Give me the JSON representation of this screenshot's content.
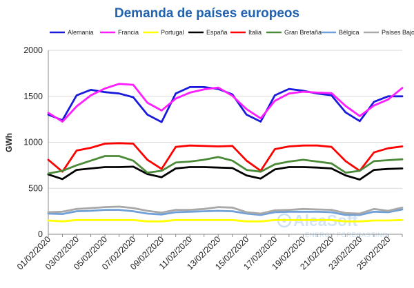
{
  "chart_data": {
    "type": "line",
    "title": "Demanda de países europeos",
    "ylabel": "GWh",
    "xlabel": "",
    "ylim": [
      0,
      2000
    ],
    "yticks": [
      0,
      500,
      1000,
      1500,
      2000
    ],
    "grid": true,
    "legend_position": "top",
    "x": [
      "01/02/2020",
      "02/02/2020",
      "03/02/2020",
      "04/02/2020",
      "05/02/2020",
      "06/02/2020",
      "07/02/2020",
      "08/02/2020",
      "09/02/2020",
      "10/02/2020",
      "11/02/2020",
      "12/02/2020",
      "13/02/2020",
      "14/02/2020",
      "15/02/2020",
      "16/02/2020",
      "17/02/2020",
      "18/02/2020",
      "19/02/2020",
      "20/02/2020",
      "21/02/2020",
      "22/02/2020",
      "23/02/2020",
      "24/02/2020",
      "25/02/2020",
      "26/02/2020"
    ],
    "xtick_labels": [
      "01/02/2020",
      "03/02/2020",
      "05/02/2020",
      "07/02/2020",
      "09/02/2020",
      "11/02/2020",
      "13/02/2020",
      "15/02/2020",
      "17/02/2020",
      "19/02/2020",
      "21/02/2020",
      "23/02/2020",
      "25/02/2020"
    ],
    "series": [
      {
        "name": "Alemania",
        "color": "#1a1adc",
        "values": [
          1300,
          1240,
          1510,
          1570,
          1545,
          1530,
          1490,
          1300,
          1220,
          1530,
          1600,
          1600,
          1580,
          1520,
          1300,
          1225,
          1510,
          1580,
          1560,
          1530,
          1510,
          1325,
          1230,
          1440,
          1500,
          1500
        ]
      },
      {
        "name": "Francia",
        "color": "#ff1cff",
        "values": [
          1320,
          1225,
          1390,
          1510,
          1585,
          1635,
          1625,
          1430,
          1345,
          1475,
          1540,
          1575,
          1595,
          1505,
          1360,
          1260,
          1450,
          1530,
          1550,
          1540,
          1535,
          1395,
          1285,
          1400,
          1465,
          1590
        ]
      },
      {
        "name": "Portugal",
        "color": "#ffff00",
        "values": [
          150,
          140,
          155,
          155,
          155,
          155,
          155,
          140,
          140,
          155,
          155,
          155,
          155,
          155,
          140,
          140,
          155,
          155,
          155,
          155,
          155,
          140,
          140,
          150,
          150,
          155
        ]
      },
      {
        "name": "España",
        "color": "#000000",
        "values": [
          650,
          600,
          700,
          715,
          730,
          730,
          735,
          655,
          620,
          715,
          730,
          730,
          725,
          720,
          640,
          605,
          705,
          730,
          730,
          725,
          715,
          640,
          595,
          700,
          710,
          715
        ]
      },
      {
        "name": "Italia",
        "color": "#ff0000",
        "values": [
          810,
          680,
          910,
          940,
          985,
          990,
          985,
          810,
          710,
          950,
          965,
          960,
          955,
          960,
          800,
          690,
          925,
          955,
          965,
          965,
          950,
          795,
          690,
          890,
          935,
          955
        ]
      },
      {
        "name": "Gran Bretaña",
        "color": "#4b8a38",
        "values": [
          660,
          690,
          750,
          800,
          850,
          850,
          800,
          670,
          690,
          780,
          790,
          810,
          840,
          800,
          700,
          680,
          760,
          790,
          810,
          790,
          770,
          670,
          690,
          795,
          805,
          815
        ]
      },
      {
        "name": "Bélgica",
        "color": "#6fa0d8",
        "values": [
          225,
          220,
          250,
          255,
          265,
          265,
          250,
          225,
          215,
          240,
          245,
          250,
          255,
          250,
          225,
          210,
          240,
          245,
          245,
          245,
          240,
          210,
          210,
          245,
          240,
          270
        ]
      },
      {
        "name": "Países Bajos",
        "color": "#a8a8a8",
        "values": [
          240,
          245,
          275,
          285,
          295,
          300,
          285,
          255,
          235,
          265,
          265,
          275,
          295,
          290,
          240,
          225,
          260,
          265,
          275,
          270,
          265,
          230,
          225,
          275,
          255,
          290
        ]
      }
    ]
  },
  "watermark": {
    "brand": "AleaSoft",
    "tagline": "ENERGY FORECASTING",
    "icon": "aleasoft-logo-icon"
  }
}
